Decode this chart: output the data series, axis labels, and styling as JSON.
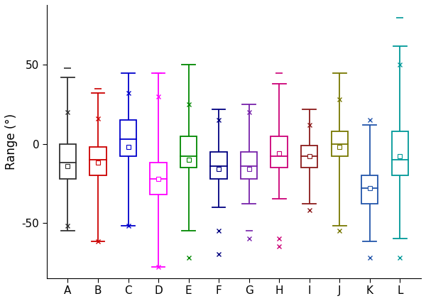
{
  "categories": [
    "A",
    "B",
    "C",
    "D",
    "E",
    "F",
    "G",
    "H",
    "I",
    "J",
    "K",
    "L"
  ],
  "colors": [
    "#333333",
    "#cc0000",
    "#0000cc",
    "#ff00ff",
    "#008800",
    "#000080",
    "#7722aa",
    "#cc0077",
    "#8b1a1a",
    "#777700",
    "#2255aa",
    "#009999"
  ],
  "ylabel": "Range (°)",
  "ylim": [
    -85,
    88
  ],
  "yticks": [
    -50,
    0,
    50
  ],
  "boxes": [
    {
      "q1": -22,
      "median": -12,
      "q3": 0,
      "mean": -14,
      "whislo": -55,
      "whishi": 42,
      "fliers": [
        {
          "v": 20,
          "m": "x"
        },
        {
          "v": 48,
          "m": "-"
        },
        {
          "v": -52,
          "m": "x"
        }
      ]
    },
    {
      "q1": -20,
      "median": -10,
      "q3": -2,
      "mean": -12,
      "whislo": -62,
      "whishi": 32,
      "fliers": [
        {
          "v": 16,
          "m": "x"
        },
        {
          "v": 35,
          "m": "-"
        },
        {
          "v": -62,
          "m": "x"
        }
      ]
    },
    {
      "q1": -8,
      "median": 3,
      "q3": 15,
      "mean": -2,
      "whislo": -52,
      "whishi": 45,
      "fliers": [
        {
          "v": 32,
          "m": "x"
        },
        {
          "v": -52,
          "m": "x"
        }
      ]
    },
    {
      "q1": -32,
      "median": -22,
      "q3": -12,
      "mean": -22,
      "whislo": -78,
      "whishi": 45,
      "fliers": [
        {
          "v": 30,
          "m": "x"
        },
        {
          "v": 45,
          "m": "-"
        },
        {
          "v": -78,
          "m": "x"
        }
      ]
    },
    {
      "q1": -15,
      "median": -8,
      "q3": 5,
      "mean": -10,
      "whislo": -55,
      "whishi": 50,
      "fliers": [
        {
          "v": 25,
          "m": "x"
        },
        {
          "v": -72,
          "m": "x"
        }
      ]
    },
    {
      "q1": -22,
      "median": -14,
      "q3": -5,
      "mean": -16,
      "whislo": -40,
      "whishi": 22,
      "fliers": [
        {
          "v": 15,
          "m": "x"
        },
        {
          "v": -55,
          "m": "x"
        },
        {
          "v": -70,
          "m": "x"
        }
      ]
    },
    {
      "q1": -22,
      "median": -14,
      "q3": -5,
      "mean": -16,
      "whislo": -38,
      "whishi": 25,
      "fliers": [
        {
          "v": 20,
          "m": "x"
        },
        {
          "v": -55,
          "m": "-"
        },
        {
          "v": -60,
          "m": "x"
        }
      ]
    },
    {
      "q1": -15,
      "median": -8,
      "q3": 5,
      "mean": -6,
      "whislo": -35,
      "whishi": 38,
      "fliers": [
        {
          "v": 45,
          "m": "-"
        },
        {
          "v": -60,
          "m": "x"
        },
        {
          "v": -65,
          "m": "x"
        }
      ]
    },
    {
      "q1": -15,
      "median": -8,
      "q3": -1,
      "mean": -8,
      "whislo": -38,
      "whishi": 22,
      "fliers": [
        {
          "v": 12,
          "m": "x"
        },
        {
          "v": -42,
          "m": "x"
        }
      ]
    },
    {
      "q1": -8,
      "median": 0,
      "q3": 8,
      "mean": -2,
      "whislo": -52,
      "whishi": 45,
      "fliers": [
        {
          "v": 28,
          "m": "x"
        },
        {
          "v": -55,
          "m": "x"
        }
      ]
    },
    {
      "q1": -38,
      "median": -28,
      "q3": -20,
      "mean": -28,
      "whislo": -62,
      "whishi": 12,
      "fliers": [
        {
          "v": 15,
          "m": "x"
        },
        {
          "v": -72,
          "m": "x"
        }
      ]
    },
    {
      "q1": -20,
      "median": -10,
      "q3": 8,
      "mean": -8,
      "whislo": -60,
      "whishi": 62,
      "fliers": [
        {
          "v": 80,
          "m": "-"
        },
        {
          "v": 50,
          "m": "x"
        },
        {
          "v": -72,
          "m": "x"
        }
      ]
    }
  ],
  "box_width": 0.55,
  "linewidth": 1.3,
  "cap_ratio": 0.4
}
